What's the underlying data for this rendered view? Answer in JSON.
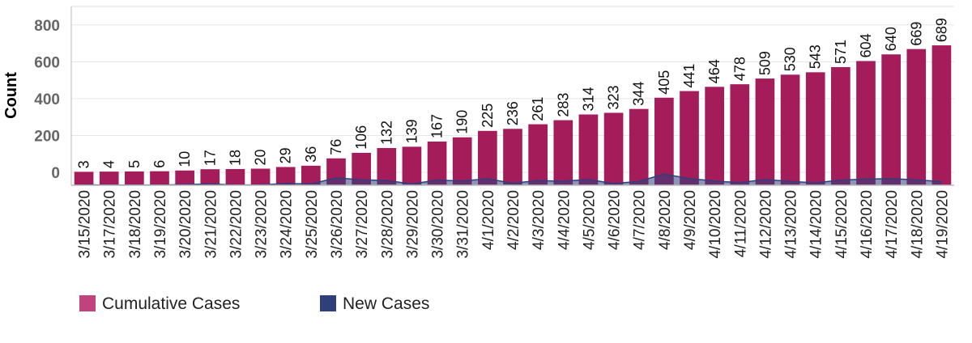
{
  "colors": {
    "cumulative": "#a51c5b",
    "cumulative_legend": "#c0437e",
    "new": "#2e3f7c",
    "grid": "#e6e6e6",
    "axis": "#bbbbbb"
  },
  "chart_data": {
    "type": "bar",
    "title": "",
    "xlabel": "",
    "ylabel": "Count",
    "ylim": [
      -70,
      900
    ],
    "yticks": [
      0,
      200,
      400,
      600,
      800
    ],
    "grid": true,
    "legend_position": "bottom-left",
    "categories": [
      "3/15/2020",
      "3/17/2020",
      "3/18/2020",
      "3/19/2020",
      "3/20/2020",
      "3/21/2020",
      "3/22/2020",
      "3/23/2020",
      "3/24/2020",
      "3/25/2020",
      "3/26/2020",
      "3/27/2020",
      "3/28/2020",
      "3/29/2020",
      "3/30/2020",
      "3/31/2020",
      "4/1/2020",
      "4/2/2020",
      "4/3/2020",
      "4/4/2020",
      "4/5/2020",
      "4/6/2020",
      "4/7/2020",
      "4/8/2020",
      "4/9/2020",
      "4/10/2020",
      "4/11/2020",
      "4/12/2020",
      "4/13/2020",
      "4/14/2020",
      "4/15/2020",
      "4/16/2020",
      "4/17/2020",
      "4/18/2020",
      "4/19/2020"
    ],
    "series": [
      {
        "name": "Cumulative Cases",
        "type": "bar",
        "values": [
          3,
          4,
          5,
          6,
          10,
          17,
          18,
          20,
          29,
          36,
          76,
          106,
          132,
          139,
          167,
          190,
          225,
          236,
          261,
          283,
          314,
          323,
          344,
          405,
          441,
          464,
          478,
          509,
          530,
          543,
          571,
          604,
          640,
          669,
          689
        ],
        "labels": [
          "3",
          "4",
          "5",
          "6",
          "10",
          "17",
          "18",
          "20",
          "29",
          "36",
          "76",
          "106",
          "132",
          "139",
          "167",
          "190",
          "225",
          "236",
          "261",
          "283",
          "314",
          "323",
          "344",
          "405",
          "441",
          "464",
          "478",
          "509",
          "530",
          "543",
          "571",
          "604",
          "640",
          "669",
          "689"
        ]
      },
      {
        "name": "New Cases",
        "type": "area",
        "values": [
          3,
          1,
          1,
          1,
          4,
          7,
          1,
          2,
          9,
          7,
          40,
          30,
          26,
          7,
          28,
          23,
          35,
          11,
          25,
          22,
          31,
          9,
          21,
          61,
          36,
          23,
          14,
          31,
          21,
          13,
          28,
          33,
          36,
          29,
          20
        ]
      }
    ]
  }
}
